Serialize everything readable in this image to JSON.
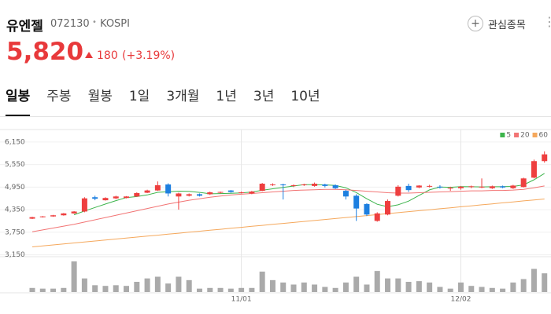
{
  "header": {
    "name": "유엔젤",
    "code": "072130",
    "market": "KOSPI",
    "favorite": "관심종목",
    "price": "5,820",
    "change": "180",
    "change_pct": "(+3.19%)"
  },
  "tabs": [
    "일봉",
    "주봉",
    "월봉",
    "1일",
    "3개월",
    "1년",
    "3년",
    "10년"
  ],
  "chart_data": {
    "type": "candlestick",
    "categories": [
      null,
      null,
      null,
      null,
      null,
      null,
      null,
      null,
      null,
      null,
      null,
      null,
      null,
      null,
      null,
      null,
      null,
      null,
      null,
      null,
      "11/01",
      null,
      null,
      null,
      null,
      null,
      null,
      null,
      null,
      null,
      null,
      null,
      null,
      null,
      null,
      null,
      null,
      null,
      null,
      null,
      null,
      "12/02",
      null,
      null,
      null,
      null,
      null,
      null,
      null,
      null
    ],
    "open": [
      4110,
      4150,
      4170,
      4200,
      4250,
      4300,
      4680,
      4600,
      4650,
      4660,
      4700,
      4800,
      4860,
      5020,
      4700,
      4720,
      4760,
      4760,
      4800,
      4860,
      4800,
      4780,
      4850,
      5000,
      5020,
      4980,
      5000,
      4980,
      5020,
      5000,
      4850,
      4720,
      4500,
      4050,
      4220,
      4720,
      4980,
      4940,
      4970,
      4960,
      4920,
      4920,
      4950,
      4940,
      4920,
      4970,
      4920,
      4950,
      5200,
      5640
    ],
    "high": [
      4160,
      4180,
      4210,
      4260,
      4310,
      4680,
      4720,
      4680,
      4720,
      4710,
      4810,
      4880,
      5100,
      5050,
      4800,
      4780,
      4780,
      4830,
      4830,
      4870,
      4830,
      4850,
      5060,
      5050,
      5040,
      5020,
      5040,
      5070,
      5040,
      5020,
      4880,
      4760,
      4520,
      4280,
      4620,
      5000,
      5040,
      5000,
      5010,
      5000,
      4960,
      4980,
      4990,
      5180,
      4990,
      4990,
      5010,
      5200,
      5680,
      5900
    ],
    "low": [
      4100,
      4140,
      4160,
      4190,
      4240,
      4280,
      4600,
      4590,
      4630,
      4650,
      4690,
      4790,
      4850,
      4700,
      4350,
      4700,
      4700,
      4740,
      4780,
      4800,
      4780,
      4760,
      4840,
      4980,
      4620,
      4950,
      4980,
      4960,
      4940,
      4900,
      4620,
      4050,
      4180,
      4030,
      4200,
      4700,
      4820,
      4920,
      4940,
      4910,
      4850,
      4880,
      4920,
      4920,
      4900,
      4920,
      4900,
      4940,
      5180,
      5600
    ],
    "close": [
      4150,
      4170,
      4200,
      4250,
      4300,
      4650,
      4640,
      4660,
      4700,
      4700,
      4790,
      4860,
      5000,
      4780,
      4780,
      4760,
      4720,
      4810,
      4820,
      4820,
      4810,
      4830,
      5040,
      5020,
      5000,
      5000,
      5020,
      5040,
      4980,
      4920,
      4700,
      4380,
      4220,
      4250,
      4580,
      4960,
      4870,
      4990,
      4980,
      4950,
      4930,
      4960,
      4970,
      4960,
      4970,
      4940,
      4990,
      5180,
      5640,
      5820
    ],
    "up_color": "#ee3f3f",
    "down_color": "#1d7fe0",
    "series": [
      {
        "name": "5",
        "color": "#3cb44b",
        "values": [
          null,
          null,
          null,
          null,
          4214,
          4314,
          4408,
          4500,
          4590,
          4670,
          4698,
          4742,
          4810,
          4826,
          4842,
          4836,
          4808,
          4770,
          4778,
          4786,
          4796,
          4818,
          4864,
          4904,
          4940,
          4978,
          5016,
          5016,
          5008,
          4992,
          4932,
          4804,
          4640,
          4494,
          4426,
          4478,
          4576,
          4730,
          4876,
          4950,
          4944,
          4962,
          4958,
          4954,
          4958,
          4960,
          4966,
          5008,
          5144,
          5314
        ]
      },
      {
        "name": "20",
        "color": "#f27474",
        "values": [
          3760,
          3810,
          3860,
          3910,
          3960,
          4020,
          4080,
          4140,
          4200,
          4260,
          4320,
          4380,
          4440,
          4500,
          4550,
          4600,
          4640,
          4680,
          4710,
          4740,
          4760,
          4780,
          4800,
          4820,
          4840,
          4860,
          4870,
          4880,
          4890,
          4890,
          4880,
          4860,
          4840,
          4820,
          4800,
          4790,
          4790,
          4800,
          4810,
          4820,
          4830,
          4840,
          4850,
          4850,
          4860,
          4860,
          4870,
          4890,
          4930,
          4980
        ]
      },
      {
        "name": "60",
        "color": "#f5a85c",
        "values": [
          3360,
          3386,
          3412,
          3438,
          3464,
          3490,
          3516,
          3542,
          3568,
          3594,
          3620,
          3646,
          3672,
          3698,
          3724,
          3750,
          3776,
          3802,
          3828,
          3854,
          3880,
          3906,
          3932,
          3958,
          3984,
          4010,
          4036,
          4062,
          4088,
          4114,
          4140,
          4166,
          4192,
          4218,
          4244,
          4270,
          4296,
          4322,
          4348,
          4374,
          4400,
          4426,
          4452,
          4478,
          4504,
          4530,
          4556,
          4582,
          4608,
          4634
        ]
      }
    ],
    "volume": [
      12,
      10,
      10,
      12,
      90,
      40,
      20,
      18,
      20,
      18,
      30,
      40,
      45,
      25,
      45,
      35,
      10,
      12,
      12,
      10,
      12,
      12,
      60,
      35,
      28,
      22,
      28,
      22,
      15,
      12,
      28,
      45,
      22,
      62,
      40,
      40,
      30,
      32,
      28,
      15,
      10,
      28,
      18,
      15,
      12,
      10,
      28,
      38,
      68,
      55
    ],
    "volume_color": "#aaaaaa",
    "ylim": [
      3120,
      6480
    ],
    "yticks": [
      {
        "value": 3150,
        "label": "3,150"
      },
      {
        "value": 3750,
        "label": "3,750"
      },
      {
        "value": 4350,
        "label": "4,350"
      },
      {
        "value": 4950,
        "label": "4,950"
      },
      {
        "value": 5550,
        "label": "5,550"
      },
      {
        "value": 6150,
        "label": "6,150"
      }
    ],
    "grid": true,
    "legend": "top-right"
  }
}
